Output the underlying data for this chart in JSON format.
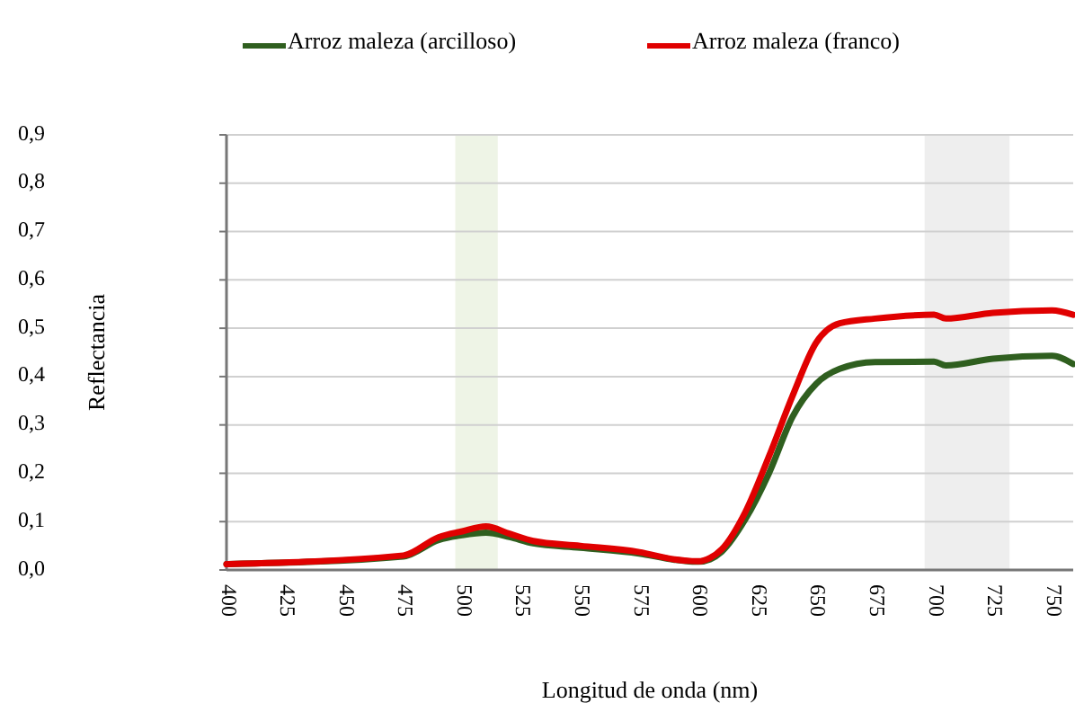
{
  "chart_data": {
    "type": "line",
    "xlabel": "Longitud de onda (nm)",
    "ylabel": "Reflectancia",
    "xlim": [
      400,
      759
    ],
    "xticks": [
      400,
      425,
      450,
      475,
      500,
      525,
      550,
      575,
      600,
      625,
      650,
      675,
      700,
      725,
      750
    ],
    "ylim": [
      0,
      0.9
    ],
    "yticks": [
      {
        "value": 0,
        "label": "0,0"
      },
      {
        "value": 0.1,
        "label": "0,1"
      },
      {
        "value": 0.2,
        "label": "0,2"
      },
      {
        "value": 0.3,
        "label": "0,3"
      },
      {
        "value": 0.4,
        "label": "0,4"
      },
      {
        "value": 0.5,
        "label": "0,5"
      },
      {
        "value": 0.6,
        "label": "0,6"
      },
      {
        "value": 0.7,
        "label": "0,7"
      },
      {
        "value": 0.8,
        "label": "0,8"
      },
      {
        "value": 0.9,
        "label": "0,9"
      }
    ],
    "grid": "y",
    "legend": "top",
    "line_style": "solid",
    "marker": "none",
    "bands": [
      {
        "axis": "x",
        "from": 497,
        "to": 515,
        "color": "#eef4e6"
      },
      {
        "axis": "x",
        "from": 696,
        "to": 732,
        "color": "#eeeeee"
      }
    ],
    "series": [
      {
        "name": "Arroz maleza (arcilloso)",
        "color": "#2f5f1f",
        "x": [
          400,
          475,
          490,
          500,
          510,
          520,
          530,
          550,
          575,
          590,
          600,
          605,
          610,
          620,
          630,
          640,
          650,
          660,
          675,
          700,
          705,
          725,
          750,
          759
        ],
        "values": [
          0.012,
          0.028,
          0.062,
          0.072,
          0.077,
          0.068,
          0.055,
          0.046,
          0.034,
          0.021,
          0.017,
          0.022,
          0.038,
          0.105,
          0.2,
          0.317,
          0.385,
          0.416,
          0.43,
          0.431,
          0.423,
          0.437,
          0.443,
          0.426
        ]
      },
      {
        "name": "Arroz maleza (franco)",
        "color": "#e00000",
        "x": [
          400,
          475,
          490,
          500,
          510,
          520,
          530,
          550,
          575,
          590,
          600,
          605,
          610,
          620,
          630,
          640,
          650,
          660,
          675,
          700,
          705,
          725,
          750,
          759
        ],
        "values": [
          0.012,
          0.03,
          0.068,
          0.08,
          0.09,
          0.075,
          0.06,
          0.05,
          0.037,
          0.022,
          0.018,
          0.025,
          0.043,
          0.12,
          0.235,
          0.36,
          0.47,
          0.51,
          0.52,
          0.528,
          0.52,
          0.532,
          0.537,
          0.528
        ]
      }
    ]
  }
}
